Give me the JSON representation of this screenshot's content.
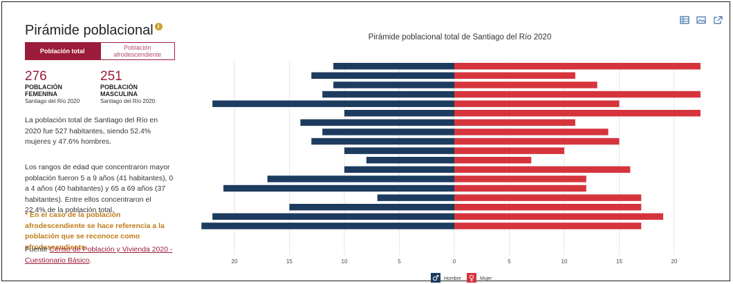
{
  "panel": {
    "title": "Pirámide poblacional",
    "info_icon": "info-icon",
    "tabs": [
      {
        "label": "Población total",
        "active": true
      },
      {
        "label": "Población afrodescendiente",
        "active": false
      }
    ],
    "stats": [
      {
        "value": "276",
        "label": "POBLACIÓN FEMENINA",
        "sub": "Santiago del Río 2020"
      },
      {
        "value": "251",
        "label": "POBLACIÓN MASCULINA",
        "sub": "Santiago del Río 2020"
      }
    ],
    "paragraph1": "La población total de Santiago del Río en 2020 fue 527 habitantes, siendo 52.4% mujeres y 47.6% hombres.",
    "paragraph2": "Los rangos de edad que concentraron mayor población fueron 5 a 9 años (41 habitantes), 0 a 4 años (40 habitantes) y 65 a 69 años (37 habitantes). Entre ellos concentraron el 22.4% de la población total.",
    "note": "* En el caso de la población afrodescendiente se hace referencia a la población que se reconoce como afrodescendiente.",
    "source_prefix": "Fuente",
    "source_link": "Censo de Población y Vivienda 2020 - Cuestionario Básico",
    "source_suffix": "."
  },
  "toolbar": {
    "icons": [
      "table-icon",
      "image-icon",
      "external-link-icon"
    ]
  },
  "chart_data": {
    "type": "bar",
    "orientation": "horizontal-pyramid",
    "title": "Pirámide poblacional total de Santiago del Río 2020",
    "xlim": [
      -23,
      23
    ],
    "xticks": [
      20,
      15,
      10,
      5,
      0,
      5,
      10,
      15,
      20
    ],
    "grid": true,
    "legend_position": "bottom-center",
    "colors": {
      "hombre": "#1c3b5f",
      "mujer": "#d6343d",
      "grid": "#e6e6e6"
    },
    "series": [
      {
        "name": "Hombre",
        "values": [
          11,
          13,
          11,
          12,
          22,
          10,
          14,
          12,
          13,
          10,
          8,
          10,
          17,
          21,
          7,
          15,
          22,
          23
        ]
      },
      {
        "name": "Mujer",
        "values": [
          24,
          11,
          13,
          23,
          15,
          23,
          11,
          14,
          15,
          10,
          7,
          16,
          12,
          12,
          17,
          17,
          19,
          17
        ]
      }
    ]
  }
}
